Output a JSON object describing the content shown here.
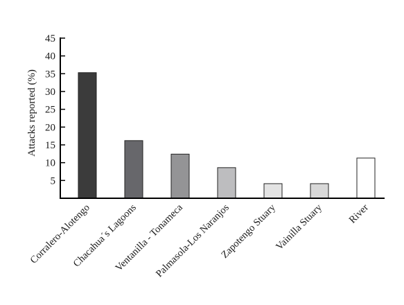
{
  "chart_data": {
    "type": "bar",
    "title": "",
    "xlabel": "",
    "ylabel": "Attacks reported (%)",
    "ylim": [
      0,
      45
    ],
    "yticks": [
      5,
      10,
      15,
      20,
      25,
      30,
      35,
      40,
      45
    ],
    "grid": false,
    "categories": [
      "Corralero-Alotengo",
      "Chacahua´s Lagoons",
      "Ventanilla - Tonameca",
      "Palmasola-Los Naranjos",
      "Zapotengo Stuary",
      "Vainilla Stuary",
      "River"
    ],
    "values": [
      35.3,
      16.2,
      12.4,
      8.6,
      4.1,
      4.1,
      11.3
    ],
    "colors": [
      "#3b3b3b",
      "#67676b",
      "#949496",
      "#bdbdbf",
      "#e3e3e3",
      "#d8d8d8",
      "#ffffff"
    ]
  }
}
